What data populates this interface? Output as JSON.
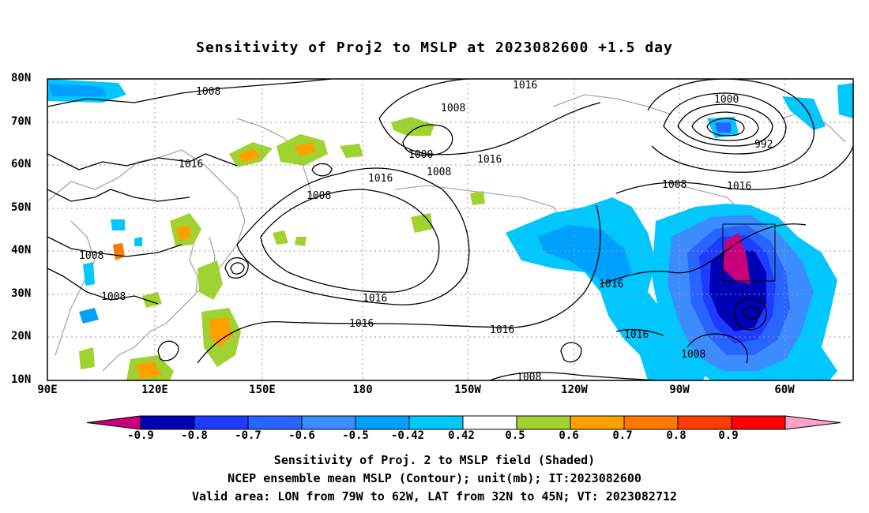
{
  "title": "Sensitivity of Proj2 to MSLP at 2023082600 +1.5 day",
  "lat_labels": [
    "80N",
    "70N",
    "60N",
    "50N",
    "40N",
    "30N",
    "20N",
    "10N"
  ],
  "lon_labels": [
    "90E",
    "120E",
    "150E",
    "180",
    "150W",
    "120W",
    "90W",
    "60W"
  ],
  "contour_labels": [
    "1008",
    "1016",
    "1008",
    "1016",
    "1008",
    "1000",
    "1008",
    "1016",
    "1016",
    "1016",
    "1016",
    "1016",
    "1016",
    "1016",
    "1008",
    "1008",
    "1008",
    "1000",
    "992",
    "1008",
    "1016",
    "1008"
  ],
  "colorbar": {
    "labels": [
      "-0.9",
      "-0.8",
      "-0.7",
      "-0.6",
      "-0.5",
      "-0.42",
      "0.42",
      "0.5",
      "0.6",
      "0.7",
      "0.8",
      "0.9"
    ],
    "colors": [
      "#0000b4",
      "#1e3cff",
      "#2864ff",
      "#3c8cff",
      "#00a0ff",
      "#00c8ff",
      "#ffffff",
      "#a0d232",
      "#ffa000",
      "#ff7800",
      "#ff3c00",
      "#ff0000"
    ],
    "low_extend": "#c8007c",
    "high_extend": "#ffa0c8"
  },
  "captions": {
    "line1": "Sensitivity of Proj. 2 to MSLP field (Shaded)",
    "line2": "NCEP ensemble mean MSLP (Contour); unit(mb); IT:2023082600",
    "line3": "Valid area: LON from 79W to 62W, LAT from 32N to 45N; VT: 2023082712"
  }
}
